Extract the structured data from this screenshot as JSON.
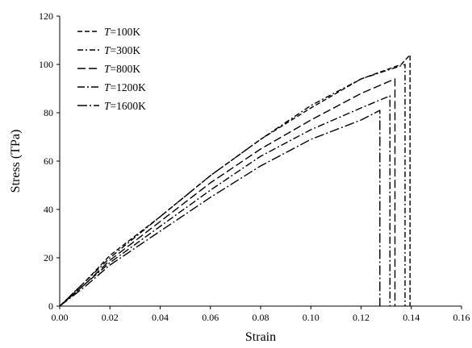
{
  "chart_data": {
    "type": "line",
    "xlabel": "Strain",
    "ylabel": "Stress (TPa)",
    "xlim": [
      0,
      0.16
    ],
    "ylim": [
      0,
      120
    ],
    "x_ticks": [
      "0.00",
      "0.02",
      "0.04",
      "0.06",
      "0.08",
      "0.10",
      "0.12",
      "0.14",
      "0.16"
    ],
    "y_ticks": [
      "0",
      "20",
      "40",
      "60",
      "80",
      "100",
      "120"
    ],
    "grid": false,
    "legend_position": "top-left",
    "series": [
      {
        "name": "T=100K",
        "legend_var": "T",
        "legend_rest": "=100K",
        "dash": "6 3",
        "x": [
          0.0,
          0.01,
          0.02,
          0.04,
          0.06,
          0.08,
          0.1,
          0.12,
          0.136,
          0.1395,
          0.1395
        ],
        "y": [
          0,
          10,
          21,
          37,
          54,
          69,
          82,
          94,
          100,
          104,
          0
        ]
      },
      {
        "name": "T=300K",
        "legend_var": "T",
        "legend_rest": "=300K",
        "dash": "7 3 2 3",
        "x": [
          0.0,
          0.01,
          0.02,
          0.04,
          0.06,
          0.08,
          0.1,
          0.12,
          0.1375,
          0.1375
        ],
        "y": [
          0,
          10,
          20,
          37,
          54,
          69,
          83,
          94,
          100,
          0
        ]
      },
      {
        "name": "T=800K",
        "legend_var": "T",
        "legend_rest": "=800K",
        "dash": "10 4",
        "x": [
          0.0,
          0.01,
          0.02,
          0.04,
          0.06,
          0.08,
          0.1,
          0.12,
          0.1335,
          0.1335
        ],
        "y": [
          0,
          9,
          19,
          35,
          51,
          65,
          77,
          88,
          94,
          0
        ]
      },
      {
        "name": "T=1200K",
        "legend_var": "T",
        "legend_rest": "=1200K",
        "dash": "9 3 2 3",
        "x": [
          0.0,
          0.01,
          0.02,
          0.04,
          0.06,
          0.08,
          0.1,
          0.12,
          0.1315,
          0.1315
        ],
        "y": [
          0,
          9,
          18,
          33,
          48,
          62,
          73,
          82,
          87,
          0
        ]
      },
      {
        "name": "T=1600K",
        "legend_var": "T",
        "legend_rest": "=1600K",
        "dash": "12 3 2 3",
        "x": [
          0.0,
          0.01,
          0.02,
          0.04,
          0.06,
          0.08,
          0.1,
          0.12,
          0.1275,
          0.1275
        ],
        "y": [
          0,
          8,
          17,
          31,
          45,
          58,
          69,
          77,
          81,
          0
        ]
      }
    ]
  }
}
